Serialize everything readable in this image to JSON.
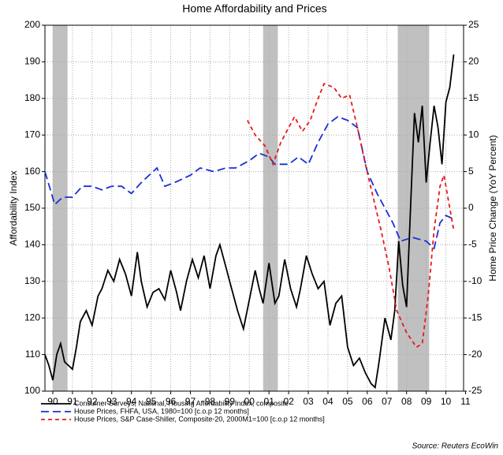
{
  "chart_data": {
    "type": "line",
    "title": "Home Affordability and Prices",
    "ylabel": "Affordability Index",
    "y2label": "Home Price Change (YoY Percent)",
    "source": "Source: Reuters EcoWin",
    "xlim": [
      1990.1,
      2011.4
    ],
    "xticks": [
      {
        "value": 1990.5,
        "label": "90"
      },
      {
        "value": 1991.5,
        "label": "91"
      },
      {
        "value": 1992.5,
        "label": "92"
      },
      {
        "value": 1993.5,
        "label": "93"
      },
      {
        "value": 1994.5,
        "label": "94"
      },
      {
        "value": 1995.5,
        "label": "95"
      },
      {
        "value": 1996.5,
        "label": "96"
      },
      {
        "value": 1997.5,
        "label": "97"
      },
      {
        "value": 1998.5,
        "label": "98"
      },
      {
        "value": 1999.5,
        "label": "99"
      },
      {
        "value": 2000.5,
        "label": "00"
      },
      {
        "value": 2001.5,
        "label": "01"
      },
      {
        "value": 2002.5,
        "label": "02"
      },
      {
        "value": 2003.5,
        "label": "03"
      },
      {
        "value": 2004.5,
        "label": "04"
      },
      {
        "value": 2005.5,
        "label": "05"
      },
      {
        "value": 2006.5,
        "label": "06"
      },
      {
        "value": 2007.5,
        "label": "07"
      },
      {
        "value": 2008.5,
        "label": "08"
      },
      {
        "value": 2009.5,
        "label": "09"
      },
      {
        "value": 2010.5,
        "label": "10"
      },
      {
        "value": 2011.5,
        "label": "11"
      }
    ],
    "ylim": [
      100,
      200
    ],
    "yticks": [
      100,
      110,
      120,
      130,
      140,
      150,
      160,
      170,
      180,
      190,
      200
    ],
    "y2lim": [
      -25,
      25
    ],
    "y2ticks": [
      -25,
      -20,
      -15,
      -10,
      -5,
      0,
      5,
      10,
      15,
      20,
      25
    ],
    "grid": true,
    "shaded_periods": [
      [
        1990.5,
        1991.25
      ],
      [
        2001.2,
        2001.95
      ],
      [
        2008.05,
        2009.65
      ]
    ],
    "shade_color": "#c0c0c0",
    "series": [
      {
        "name": "Consumer Surveys, National, Housing Affordability Index, composite",
        "color": "#000000",
        "dash": "none",
        "axis": "y",
        "x": [
          1990.1,
          1990.3,
          1990.5,
          1990.7,
          1990.9,
          1991.1,
          1991.3,
          1991.5,
          1991.7,
          1991.9,
          1992.2,
          1992.5,
          1992.8,
          1993.0,
          1993.3,
          1993.6,
          1993.9,
          1994.2,
          1994.5,
          1994.8,
          1995.0,
          1995.3,
          1995.6,
          1995.9,
          1996.2,
          1996.5,
          1996.8,
          1997.0,
          1997.3,
          1997.6,
          1997.9,
          1998.2,
          1998.5,
          1998.8,
          1999.0,
          1999.3,
          1999.6,
          1999.9,
          2000.2,
          2000.5,
          2000.8,
          2001.0,
          2001.2,
          2001.5,
          2001.8,
          2002.0,
          2002.3,
          2002.6,
          2002.9,
          2003.1,
          2003.4,
          2003.7,
          2004.0,
          2004.3,
          2004.6,
          2004.9,
          2005.2,
          2005.5,
          2005.8,
          2006.1,
          2006.4,
          2006.7,
          2006.9,
          2007.1,
          2007.4,
          2007.7,
          2007.9,
          2008.1,
          2008.3,
          2008.5,
          2008.7,
          2008.9,
          2009.1,
          2009.3,
          2009.5,
          2009.7,
          2009.9,
          2010.1,
          2010.3,
          2010.5,
          2010.7,
          2010.9
        ],
        "values": [
          110,
          107,
          103,
          110,
          113,
          108,
          107,
          106,
          112,
          119,
          122,
          118,
          126,
          128,
          133,
          130,
          136,
          132,
          126,
          138,
          130,
          123,
          127,
          128,
          125,
          133,
          127,
          122,
          130,
          136,
          131,
          137,
          128,
          137,
          140,
          134,
          128,
          122,
          117,
          125,
          133,
          128,
          124,
          135,
          124,
          126,
          136,
          128,
          123,
          128,
          137,
          132,
          128,
          130,
          118,
          124,
          126,
          112,
          107,
          109,
          105,
          102,
          101,
          108,
          120,
          114,
          122,
          141,
          129,
          123,
          150,
          176,
          168,
          178,
          157,
          168,
          178,
          172,
          162,
          179,
          183,
          192
        ]
      },
      {
        "name": "House Prices, FHFA, USA, 1980=100 [c.o.p 12 months]",
        "color": "#1a2fd6",
        "dash": "10,5",
        "axis": "y2",
        "x": [
          1990.1,
          1990.6,
          1991.0,
          1991.5,
          1992.0,
          1992.5,
          1993.0,
          1993.5,
          1994.0,
          1994.5,
          1995.0,
          1995.8,
          1996.2,
          1996.7,
          1997.5,
          1998.0,
          1998.7,
          1999.3,
          1999.8,
          2000.5,
          2001.0,
          2001.5,
          2001.8,
          2002.5,
          2003.0,
          2003.5,
          2004.0,
          2004.5,
          2005.0,
          2005.5,
          2006.0,
          2006.5,
          2007.0,
          2007.4,
          2007.8,
          2008.2,
          2008.8,
          2009.5,
          2009.9,
          2010.2,
          2010.5,
          2010.9
        ],
        "values": [
          5,
          0.5,
          1.5,
          1.5,
          3,
          3,
          2.5,
          3,
          3,
          2,
          3.5,
          5.5,
          3,
          3.5,
          4.5,
          5.5,
          5,
          5.5,
          5.5,
          6.5,
          7.5,
          7,
          6,
          6,
          7,
          6,
          9,
          11.5,
          12.5,
          12,
          11,
          5,
          2,
          0,
          -2,
          -4.5,
          -4,
          -4.5,
          -5.5,
          -2,
          -1,
          -1.5
        ]
      },
      {
        "name": "House Prices, S&P Case-Shiller, Composite-20, 2000M1=100 [c.o.p 12 months]",
        "color": "#e8191c",
        "dash": "5,4",
        "axis": "y2",
        "x": [
          2000.4,
          2000.8,
          2001.3,
          2001.7,
          2002.1,
          2002.5,
          2002.8,
          2003.2,
          2003.6,
          2004.0,
          2004.3,
          2004.8,
          2005.2,
          2005.6,
          2006.0,
          2006.4,
          2006.8,
          2007.2,
          2007.6,
          2008.0,
          2008.5,
          2009.0,
          2009.3,
          2009.6,
          2009.9,
          2010.2,
          2010.4,
          2010.7,
          2010.9
        ],
        "values": [
          12,
          10,
          8.5,
          6,
          9,
          11,
          12.5,
          10.5,
          12,
          15,
          17,
          16.5,
          15,
          15.5,
          11,
          6,
          1.5,
          -3,
          -8,
          -14,
          -17,
          -19,
          -18.5,
          -12,
          -3,
          3,
          4.5,
          0,
          -3
        ]
      }
    ]
  }
}
